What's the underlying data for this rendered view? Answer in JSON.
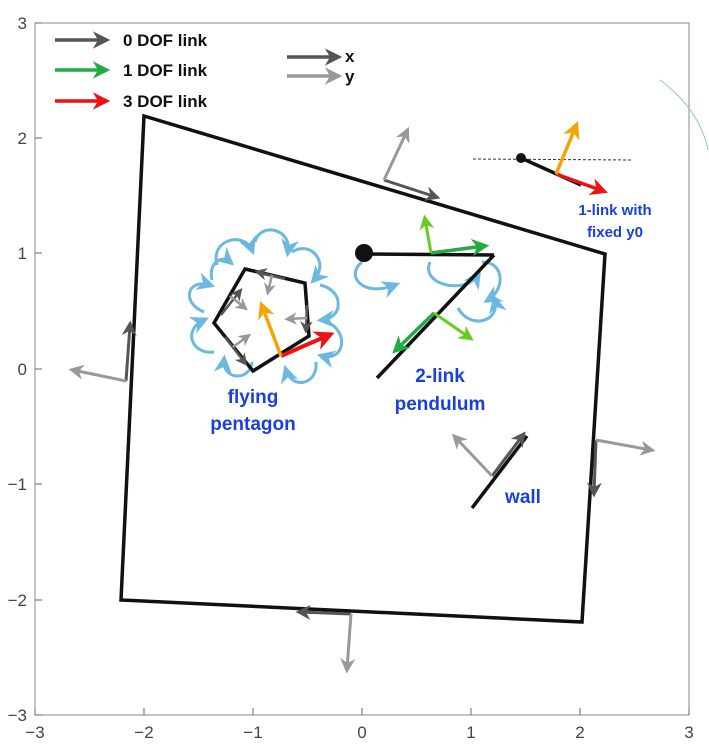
{
  "axes": {
    "x_ticks": [
      "−3",
      "−2",
      "−1",
      "0",
      "1",
      "2",
      "3"
    ],
    "y_ticks": [
      "3",
      "2",
      "1",
      "0",
      "−1",
      "−2",
      "−3"
    ]
  },
  "legend": {
    "link_types": [
      {
        "label": "0 DOF link",
        "color": "#555555"
      },
      {
        "label": "1 DOF link",
        "color": "#22aa44"
      },
      {
        "label": "3 DOF link",
        "color": "#ee1111"
      }
    ],
    "axes_key": [
      {
        "label": "x",
        "color": "#555555"
      },
      {
        "label": "y",
        "color": "#999999"
      }
    ]
  },
  "annotations": {
    "flying_pentagon": [
      "flying",
      "pentagon"
    ],
    "two_link_pendulum": [
      "2-link",
      "pendulum"
    ],
    "wall": "wall",
    "one_link": [
      "1-link with",
      "fixed y0"
    ]
  },
  "colors": {
    "link": "#111111",
    "frame_x": "#555555",
    "frame_y": "#999999",
    "one_dof": "#22aa44",
    "three_dof": "#ee1111",
    "orange_vector": "#f5a300",
    "curved_arrows": "#6bb8e0",
    "annotation_text": "#1a3fe0"
  }
}
